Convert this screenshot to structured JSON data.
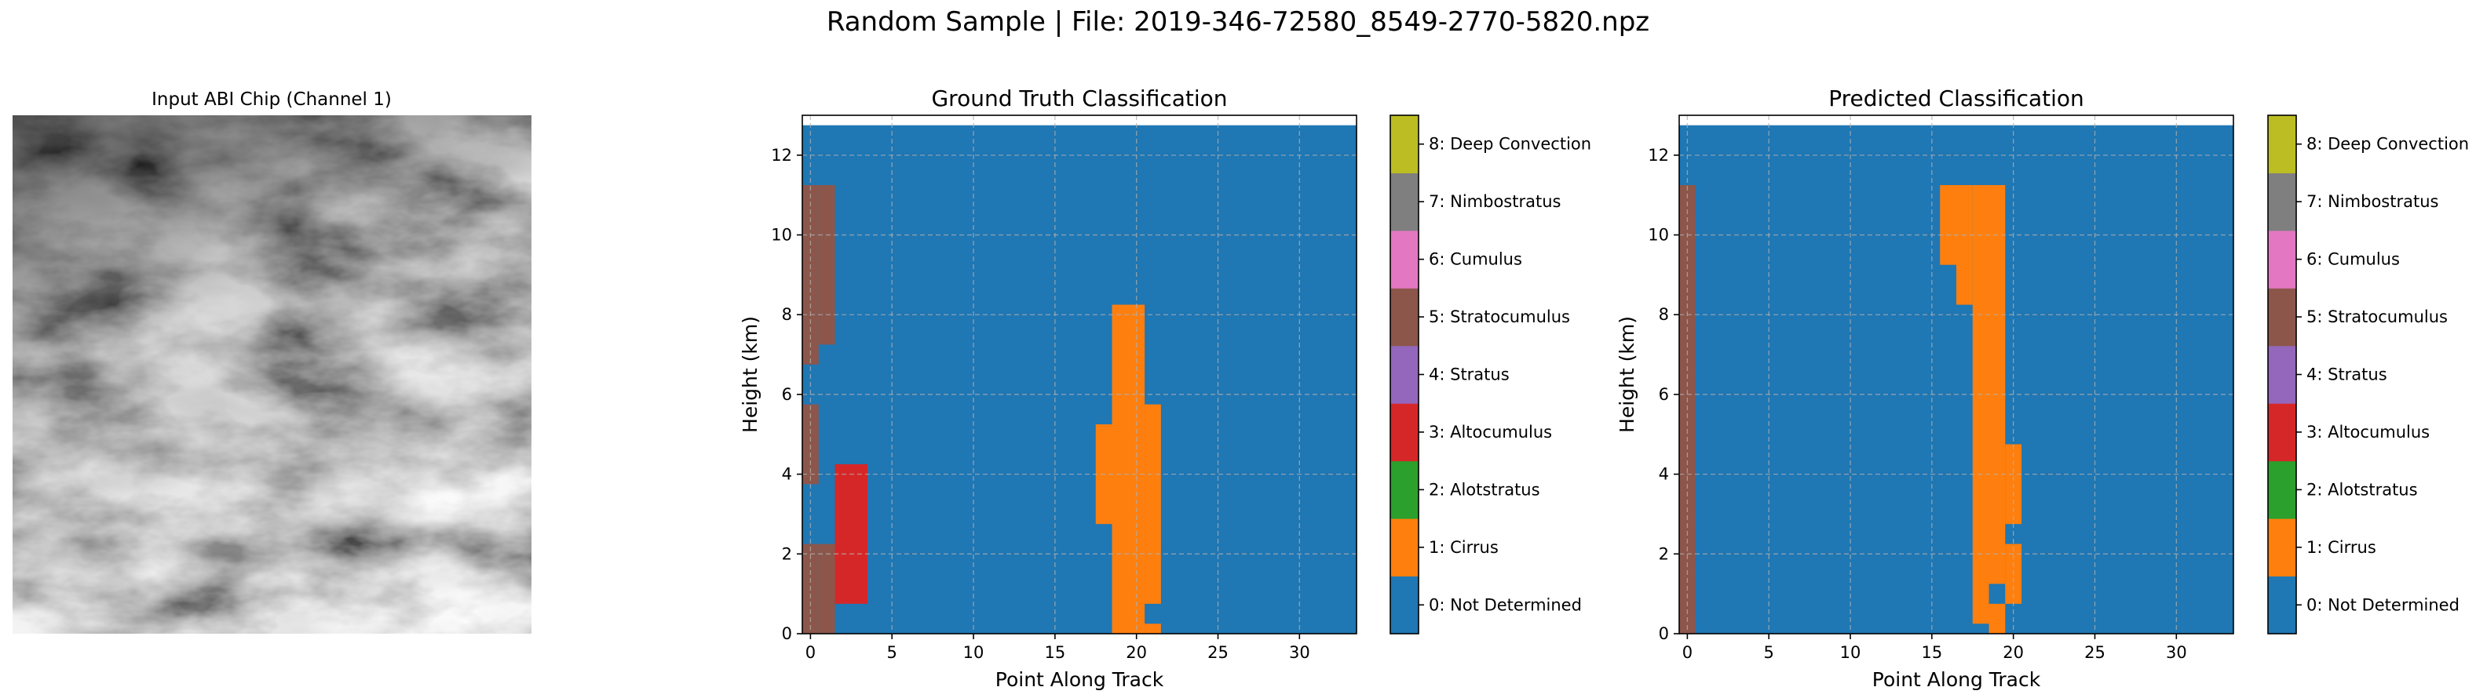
{
  "suptitle": "Random Sample | File: 2019-346-72580_8549-2770-5820.npz",
  "input_panel": {
    "title": "Input ABI Chip (Channel 1)"
  },
  "colors": {
    "classes": [
      "#1f77b4",
      "#ff7f0e",
      "#2ca02c",
      "#d62728",
      "#9467bd",
      "#8c564b",
      "#e377c2",
      "#7f7f7f",
      "#bcbd22",
      "#17becf"
    ],
    "grid": "#b0b0b0"
  },
  "classes": [
    "0: Not Determined",
    "1: Cirrus",
    "2: Alotstratus",
    "3: Altocumulus",
    "4: Stratus",
    "5: Stratocumulus",
    "6: Cumulus",
    "7: Nimbostratus",
    "8: Deep Convection"
  ],
  "chart_data": [
    {
      "type": "heatmap",
      "title": "Ground Truth Classification",
      "xlabel": "Point Along Track",
      "ylabel": "Height (km)",
      "xlim": [
        -0.5,
        33.5
      ],
      "ylim": [
        0,
        13
      ],
      "xticks": [
        0,
        5,
        10,
        15,
        20,
        25,
        30
      ],
      "yticks": [
        0,
        2,
        4,
        6,
        8,
        10,
        12
      ],
      "grid": true,
      "background_class": 0,
      "data_top_km": 12.75,
      "cells": [
        {
          "class": 5,
          "x": [
            0,
            0
          ],
          "y": [
            0,
            2.25
          ]
        },
        {
          "class": 5,
          "x": [
            1,
            1
          ],
          "y": [
            0,
            2.25
          ]
        },
        {
          "class": 5,
          "x": [
            0,
            0
          ],
          "y": [
            3.75,
            5.75
          ]
        },
        {
          "class": 5,
          "x": [
            0,
            0
          ],
          "y": [
            6.75,
            11.25
          ]
        },
        {
          "class": 5,
          "x": [
            1,
            1
          ],
          "y": [
            7.25,
            11.25
          ]
        },
        {
          "class": 3,
          "x": [
            2,
            3
          ],
          "y": [
            0.75,
            4.25
          ]
        },
        {
          "class": 1,
          "x": [
            18,
            18
          ],
          "y": [
            2.75,
            5.25
          ]
        },
        {
          "class": 1,
          "x": [
            19,
            20
          ],
          "y": [
            0,
            8.25
          ]
        },
        {
          "class": 1,
          "x": [
            21,
            21
          ],
          "y": [
            0,
            0.25
          ]
        },
        {
          "class": 1,
          "x": [
            21,
            21
          ],
          "y": [
            0.75,
            5.75
          ]
        }
      ]
    },
    {
      "type": "heatmap",
      "title": "Predicted Classification",
      "xlabel": "Point Along Track",
      "ylabel": "Height (km)",
      "xlim": [
        -0.5,
        33.5
      ],
      "ylim": [
        0,
        13
      ],
      "xticks": [
        0,
        5,
        10,
        15,
        20,
        25,
        30
      ],
      "yticks": [
        0,
        2,
        4,
        6,
        8,
        10,
        12
      ],
      "grid": true,
      "background_class": 0,
      "data_top_km": 12.75,
      "cells": [
        {
          "class": 5,
          "x": [
            0,
            0
          ],
          "y": [
            0,
            11.25
          ]
        },
        {
          "class": 1,
          "x": [
            16,
            16
          ],
          "y": [
            9.25,
            11.25
          ]
        },
        {
          "class": 1,
          "x": [
            17,
            17
          ],
          "y": [
            8.25,
            11.25
          ]
        },
        {
          "class": 1,
          "x": [
            18,
            18
          ],
          "y": [
            0.25,
            11.25
          ]
        },
        {
          "class": 1,
          "x": [
            19,
            19
          ],
          "y": [
            0,
            0.75
          ]
        },
        {
          "class": 1,
          "x": [
            19,
            19
          ],
          "y": [
            1.25,
            11.25
          ]
        },
        {
          "class": 1,
          "x": [
            20,
            20
          ],
          "y": [
            0.75,
            2.25
          ]
        },
        {
          "class": 1,
          "x": [
            20,
            20
          ],
          "y": [
            2.75,
            4.75
          ]
        }
      ]
    }
  ]
}
